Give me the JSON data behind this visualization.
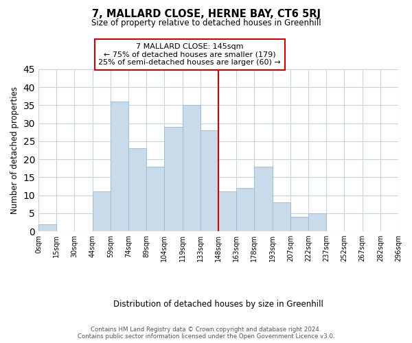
{
  "title": "7, MALLARD CLOSE, HERNE BAY, CT6 5RJ",
  "subtitle": "Size of property relative to detached houses in Greenhill",
  "xlabel": "Distribution of detached houses by size in Greenhill",
  "ylabel": "Number of detached properties",
  "bin_labels": [
    "0sqm",
    "15sqm",
    "30sqm",
    "44sqm",
    "59sqm",
    "74sqm",
    "89sqm",
    "104sqm",
    "119sqm",
    "133sqm",
    "148sqm",
    "163sqm",
    "178sqm",
    "193sqm",
    "207sqm",
    "222sqm",
    "237sqm",
    "252sqm",
    "267sqm",
    "282sqm",
    "296sqm"
  ],
  "bar_values": [
    2,
    0,
    0,
    11,
    36,
    23,
    18,
    29,
    35,
    28,
    11,
    12,
    18,
    8,
    4,
    5,
    0,
    0,
    0,
    0
  ],
  "bar_color": "#c9daea",
  "bar_edgecolor": "#9ab8ce",
  "reference_line_index": 10,
  "reference_line_color": "#cc0000",
  "ylim": [
    0,
    45
  ],
  "yticks": [
    0,
    5,
    10,
    15,
    20,
    25,
    30,
    35,
    40,
    45
  ],
  "annotation_title": "7 MALLARD CLOSE: 145sqm",
  "annotation_line1": "← 75% of detached houses are smaller (179)",
  "annotation_line2": "25% of semi-detached houses are larger (60) →",
  "annotation_box_color": "#ffffff",
  "annotation_box_edgecolor": "#cc0000",
  "footer_line1": "Contains HM Land Registry data © Crown copyright and database right 2024.",
  "footer_line2": "Contains public sector information licensed under the Open Government Licence v3.0.",
  "background_color": "#ffffff",
  "grid_color": "#c8d4dc"
}
